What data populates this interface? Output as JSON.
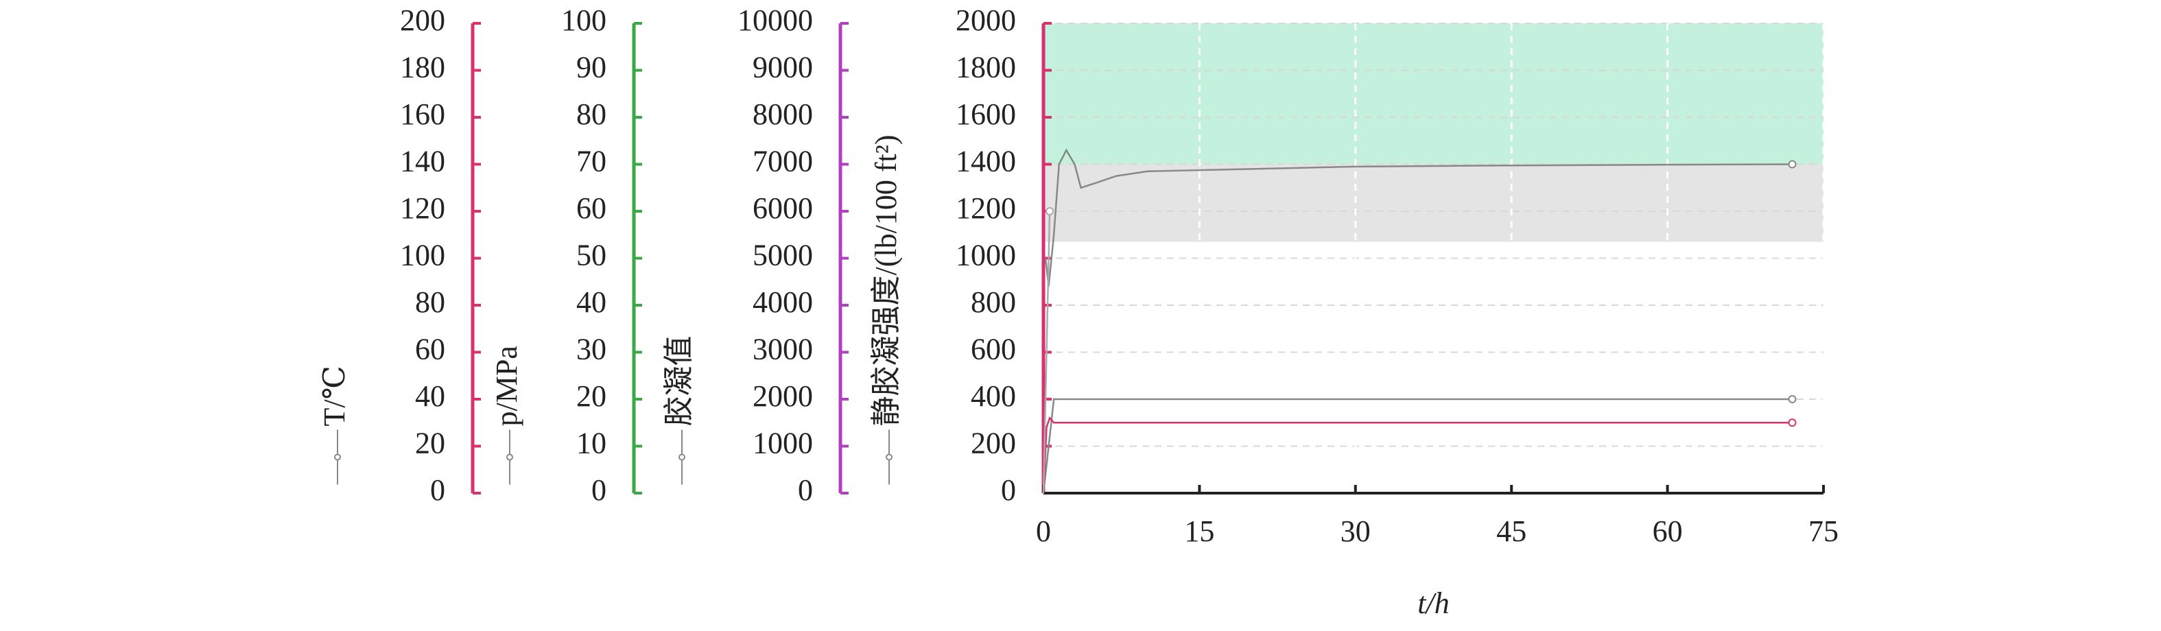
{
  "chart_data": {
    "type": "line",
    "xlabel": "t/h",
    "xlim": [
      0,
      75
    ],
    "xticks": [
      0,
      15,
      30,
      45,
      60,
      75
    ],
    "grid": true,
    "bands": [
      {
        "from": 1400,
        "to": 2000,
        "color": "#c4f0de"
      },
      {
        "from": 1070,
        "to": 1400,
        "color": "#e4e4e4"
      }
    ],
    "yaxes": [
      {
        "label": "T/℃",
        "lim": [
          0,
          200
        ],
        "ticks": [
          0,
          20,
          40,
          60,
          80,
          100,
          120,
          140,
          160,
          180,
          200
        ],
        "color": "#d9306e"
      },
      {
        "label": "p/MPa",
        "lim": [
          0,
          100
        ],
        "ticks": [
          0,
          10,
          20,
          30,
          40,
          50,
          60,
          70,
          80,
          90,
          100
        ],
        "color": "#3aa845"
      },
      {
        "label": "胶凝值",
        "lim": [
          0,
          10000
        ],
        "ticks": [
          0,
          1000,
          2000,
          3000,
          4000,
          5000,
          6000,
          7000,
          8000,
          9000,
          10000
        ],
        "color": "#b040c0"
      },
      {
        "label": "静胶凝强度/(lb/100 ft²)",
        "lim": [
          0,
          2000
        ],
        "ticks": [
          0,
          200,
          400,
          600,
          800,
          1000,
          1200,
          1400,
          1600,
          1800,
          2000
        ],
        "color": "#d9306e"
      }
    ],
    "series": [
      {
        "axis": 0,
        "color": "#888888",
        "x": [
          0.2,
          0.5,
          1,
          1.5,
          2.2,
          3,
          3.6,
          5,
          7,
          10,
          15,
          20,
          30,
          45,
          60,
          72
        ],
        "values": [
          100,
          88,
          110,
          140,
          146,
          140,
          130,
          132,
          135,
          137,
          137.5,
          138,
          139,
          139.5,
          139.8,
          140
        ]
      },
      {
        "axis": 1,
        "color": "#888888",
        "x": [
          0,
          0.5,
          1,
          3,
          72
        ],
        "values": [
          0,
          10,
          20,
          20,
          20
        ]
      },
      {
        "axis": 2,
        "color": "#d9306e",
        "x": [
          0,
          0.3,
          0.6,
          1,
          72
        ],
        "values": [
          0,
          1400,
          1600,
          1500,
          1500
        ]
      },
      {
        "axis": 3,
        "color": "#aaaaaa",
        "x": [
          0,
          0.3,
          0.6
        ],
        "values": [
          0,
          600,
          1200
        ]
      }
    ]
  }
}
